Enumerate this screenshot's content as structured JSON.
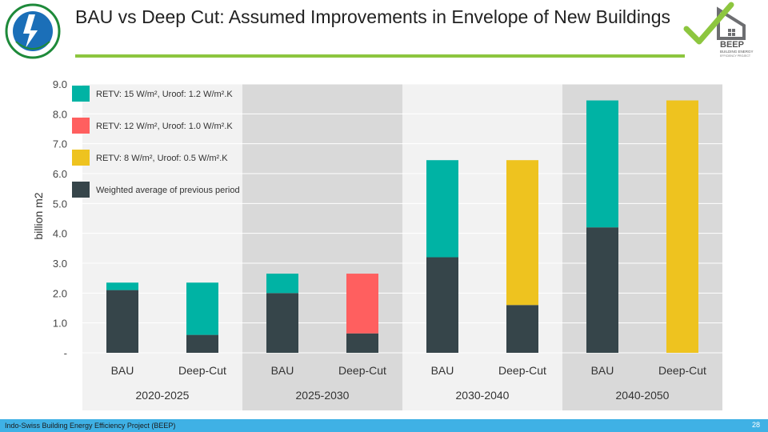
{
  "slide": {
    "title": "BAU vs Deep Cut: Assumed Improvements in Envelope of New Buildings",
    "footer": "Indo-Swiss Building Energy Efficiency Project (BEEP)",
    "page_number": "28",
    "logo_right_text": "BEEP",
    "logo_right_subtext": "BUILDING ENERGY",
    "logo_right_tagline": "EFFICIENCY PROJECT"
  },
  "colors": {
    "teal": "#00b3a4",
    "red": "#ff5f5f",
    "yellow": "#eec31f",
    "dark": "#36454a",
    "band_shaded": "#d9d9d9",
    "band_light": "#f2f2f2",
    "accent_green": "#8dc63f",
    "footer_blue": "#3fb1e5"
  },
  "chart_data": {
    "type": "bar",
    "stacked": true,
    "ylabel": "billion m2",
    "ylim": [
      0,
      9
    ],
    "yticks": [
      "-",
      "1.0",
      "2.0",
      "3.0",
      "4.0",
      "5.0",
      "6.0",
      "7.0",
      "8.0",
      "9.0"
    ],
    "grid": true,
    "legend_position": "top-left",
    "groups": [
      "2020-2025",
      "2025-2030",
      "2030-2040",
      "2040-2050"
    ],
    "categories": [
      "BAU",
      "Deep-Cut",
      "BAU",
      "Deep-Cut",
      "BAU",
      "Deep-Cut",
      "BAU",
      "Deep-Cut"
    ],
    "series": [
      {
        "name": "Weighted average of previous period",
        "color": "#36454a",
        "values": [
          2.1,
          0.6,
          2.0,
          0.65,
          3.2,
          1.6,
          4.2,
          0
        ]
      },
      {
        "name": "RETV: 15 W/m², Uroof: 1.2 W/m².K",
        "color": "#00b3a4",
        "values": [
          0.25,
          1.75,
          0.65,
          0,
          3.25,
          0,
          4.25,
          0
        ]
      },
      {
        "name": "RETV: 12 W/m², Uroof: 1.0 W/m².K",
        "color": "#ff5f5f",
        "values": [
          0,
          0,
          0,
          2.0,
          0,
          0,
          0,
          0
        ]
      },
      {
        "name": "RETV: 8 W/m², Uroof: 0.5 W/m².K",
        "color": "#eec31f",
        "values": [
          0,
          0,
          0,
          0,
          0,
          4.85,
          0,
          8.45
        ]
      }
    ],
    "legend": [
      {
        "label": "RETV: 15 W/m², Uroof: 1.2 W/m².K",
        "color": "#00b3a4"
      },
      {
        "label": "RETV: 12 W/m², Uroof: 1.0 W/m².K",
        "color": "#ff5f5f"
      },
      {
        "label": "RETV: 8 W/m², Uroof: 0.5 W/m².K",
        "color": "#eec31f"
      },
      {
        "label": "Weighted average of previous period",
        "color": "#36454a"
      }
    ]
  }
}
